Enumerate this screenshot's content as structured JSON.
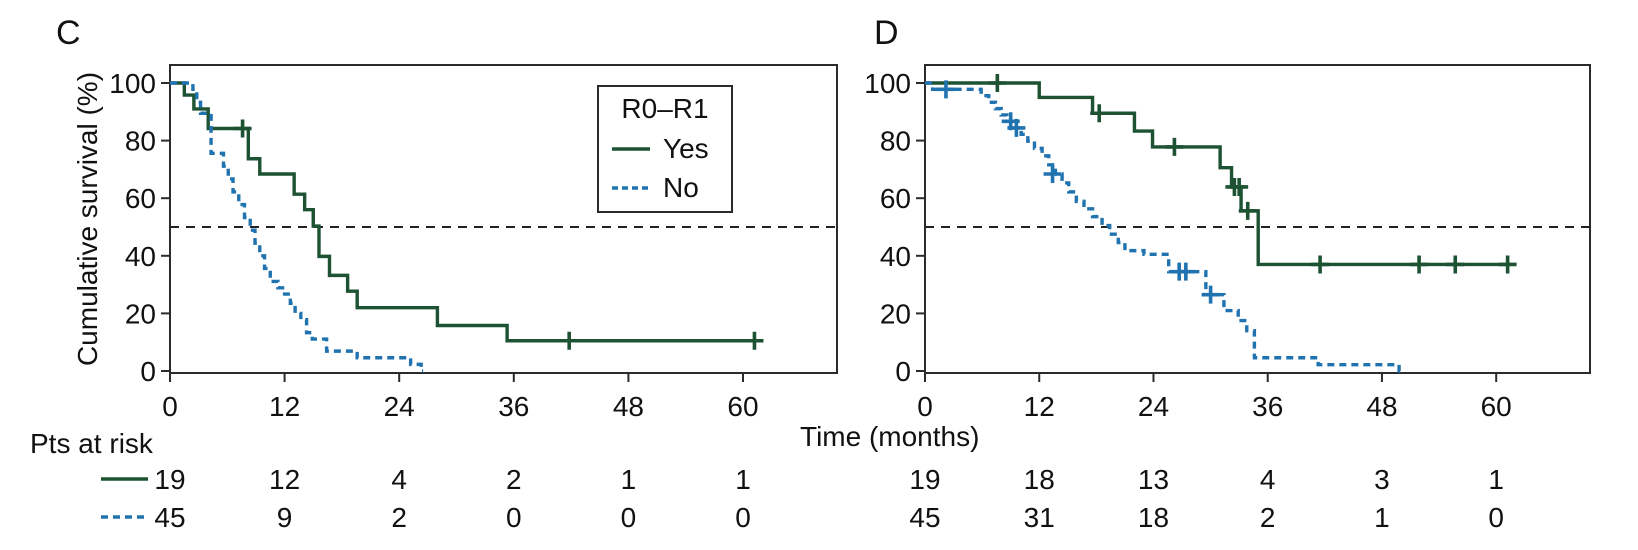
{
  "figure": {
    "y_axis_title": "Cumulative survival (%)",
    "x_axis_title": "Time (months)",
    "risk_label": "Pts at risk",
    "panels": [
      {
        "label": "C"
      },
      {
        "label": "D"
      }
    ],
    "legend": {
      "title": "R0–R1",
      "items": [
        {
          "label": "Yes",
          "style": "solid"
        },
        {
          "label": "No",
          "style": "dashed"
        }
      ]
    }
  },
  "colors": {
    "yes_line": "#1d5233",
    "no_line": "#2173b0",
    "axis": "#2b2b2b",
    "text": "#111111",
    "median_line": "#222222"
  },
  "chart_data": [
    {
      "id": "C",
      "type": "line",
      "subtype": "kaplan-meier-step",
      "title": "C",
      "xlabel": "Time (months)",
      "ylabel": "Cumulative survival (%)",
      "xlim": [
        0,
        70
      ],
      "ylim": [
        0,
        106
      ],
      "x_ticks": [
        0,
        12,
        24,
        36,
        48,
        60
      ],
      "y_ticks": [
        0,
        20,
        40,
        60,
        80,
        100
      ],
      "median_reference_pct": 50,
      "grid": false,
      "series": [
        {
          "name": "Yes",
          "style": "solid",
          "steps": [
            [
              0,
              100
            ],
            [
              1.5,
              95.8
            ],
            [
              2.5,
              91
            ],
            [
              4,
              84.2
            ],
            [
              8.2,
              73.7
            ],
            [
              9.4,
              68.4
            ],
            [
              13,
              61.4
            ],
            [
              14.1,
              56
            ],
            [
              15,
              50.3
            ],
            [
              15.6,
              39.8
            ],
            [
              16.7,
              33.2
            ],
            [
              18.6,
              27.7
            ],
            [
              19.6,
              22
            ],
            [
              28,
              15.8
            ],
            [
              35.3,
              10.5
            ]
          ],
          "end_month": 61.6,
          "censors": [
            [
              7.6,
              84.2
            ],
            [
              41.8,
              10.5
            ],
            [
              61.2,
              10.5
            ]
          ],
          "risk_counts": [
            19,
            12,
            4,
            2,
            1,
            1
          ]
        },
        {
          "name": "No",
          "style": "dashed",
          "steps": [
            [
              0,
              100
            ],
            [
              2.4,
              97.8
            ],
            [
              2.8,
              93.3
            ],
            [
              3.2,
              89.5
            ],
            [
              4.3,
              75.6
            ],
            [
              5.6,
              71.1
            ],
            [
              6.1,
              66.7
            ],
            [
              6.6,
              62.2
            ],
            [
              7.2,
              57.8
            ],
            [
              7.8,
              53.3
            ],
            [
              8.4,
              48.9
            ],
            [
              8.9,
              44.4
            ],
            [
              9.4,
              40
            ],
            [
              9.9,
              35.6
            ],
            [
              10.5,
              31.1
            ],
            [
              11.3,
              28.9
            ],
            [
              12,
              26.7
            ],
            [
              12.6,
              23.5
            ],
            [
              13.1,
              20
            ],
            [
              13.7,
              17.8
            ],
            [
              14.3,
              13.3
            ],
            [
              14.9,
              11.1
            ],
            [
              16.4,
              6.9
            ],
            [
              19.6,
              4.6
            ],
            [
              25.2,
              2.3
            ],
            [
              26.3,
              0
            ]
          ],
          "end_month": 26.5,
          "censors": [],
          "risk_counts": [
            45,
            9,
            2,
            0,
            0,
            0
          ]
        }
      ]
    },
    {
      "id": "D",
      "type": "line",
      "subtype": "kaplan-meier-step",
      "title": "D",
      "xlabel": "Time (months)",
      "ylabel": "Cumulative survival (%)",
      "xlim": [
        0,
        70
      ],
      "ylim": [
        0,
        106
      ],
      "x_ticks": [
        0,
        12,
        24,
        36,
        48,
        60
      ],
      "y_ticks": [
        0,
        20,
        40,
        60,
        80,
        100
      ],
      "median_reference_pct": 50,
      "grid": false,
      "series": [
        {
          "name": "Yes",
          "style": "solid",
          "steps": [
            [
              0,
              100
            ],
            [
              12,
              95
            ],
            [
              17.6,
              89.5
            ],
            [
              22,
              83.3
            ],
            [
              23.9,
              77.8
            ],
            [
              31,
              70.6
            ],
            [
              32.2,
              63.9
            ],
            [
              33.2,
              55.6
            ],
            [
              35,
              37
            ]
          ],
          "end_month": 61.5,
          "censors": [
            [
              7.6,
              100
            ],
            [
              18.3,
              89.5
            ],
            [
              26.2,
              77.8
            ],
            [
              32.5,
              63.9
            ],
            [
              33,
              63.9
            ],
            [
              33.9,
              55.6
            ],
            [
              41.5,
              37
            ],
            [
              51.9,
              37
            ],
            [
              55.7,
              37
            ],
            [
              61.2,
              37
            ]
          ],
          "risk_counts": [
            19,
            18,
            13,
            4,
            3,
            1
          ]
        },
        {
          "name": "No",
          "style": "dashed",
          "steps": [
            [
              0,
              100
            ],
            [
              0.8,
              97.8
            ],
            [
              5.9,
              95.6
            ],
            [
              6.7,
              93.3
            ],
            [
              7.4,
              91.1
            ],
            [
              8,
              88.9
            ],
            [
              8.6,
              86.7
            ],
            [
              9.3,
              84.4
            ],
            [
              10.1,
              82.2
            ],
            [
              10.8,
              79.8
            ],
            [
              11.5,
              77.3
            ],
            [
              12.3,
              74.7
            ],
            [
              13,
              71.6
            ],
            [
              13.7,
              68.4
            ],
            [
              14.4,
              65.3
            ],
            [
              15.1,
              62.2
            ],
            [
              15.9,
              58.9
            ],
            [
              16.7,
              56.3
            ],
            [
              17.6,
              53.6
            ],
            [
              18.6,
              50.5
            ],
            [
              19.4,
              47.5
            ],
            [
              20.3,
              44.6
            ],
            [
              21,
              41.8
            ],
            [
              23,
              40.5
            ],
            [
              25.6,
              34.5
            ],
            [
              29.5,
              26.5
            ],
            [
              31.4,
              21
            ],
            [
              32.9,
              17.5
            ],
            [
              33.8,
              14
            ],
            [
              34.6,
              4.6
            ],
            [
              41.3,
              2.2
            ],
            [
              49.8,
              0
            ]
          ],
          "end_month": 50.2,
          "censors": [
            [
              2.2,
              97.8
            ],
            [
              9,
              86.7
            ],
            [
              9.6,
              84.4
            ],
            [
              13.4,
              68.4
            ],
            [
              26.7,
              34.5
            ],
            [
              27.4,
              34.5
            ],
            [
              30,
              26.5
            ]
          ],
          "risk_counts": [
            45,
            31,
            18,
            2,
            1,
            0
          ]
        }
      ]
    }
  ]
}
